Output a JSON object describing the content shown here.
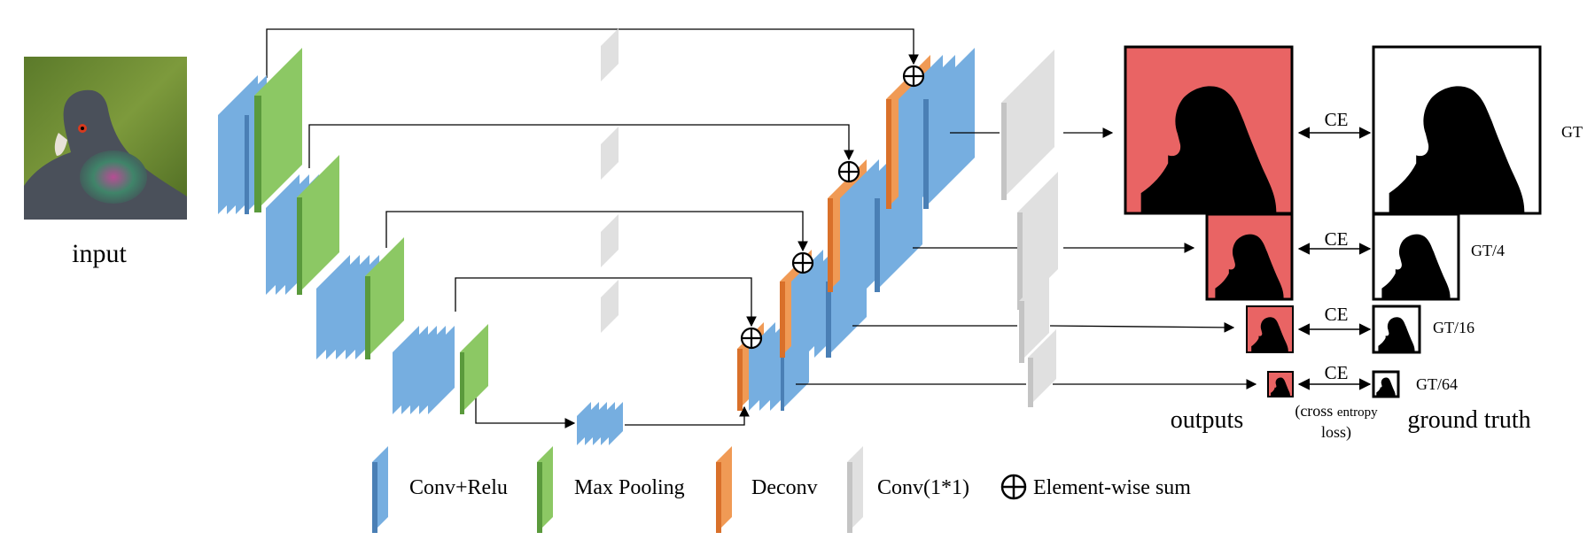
{
  "input_label": "input",
  "outputs_label": "outputs",
  "ground_truth_label": "ground truth",
  "loss_note": [
    "(cross",
    "entropy",
    "loss)"
  ],
  "pair_label": "CE",
  "gt_labels": [
    "GT",
    "GT/4",
    "GT/16",
    "GT/64"
  ],
  "legend": [
    {
      "name": "conv-relu",
      "label": "Conv+Relu",
      "color": "#4a7fb5"
    },
    {
      "name": "max-pooling",
      "label": "Max Pooling",
      "color": "#5a9a3c"
    },
    {
      "name": "deconv",
      "label": "Deconv",
      "color": "#d9702a"
    },
    {
      "name": "conv-1x1",
      "label": "Conv(1*1)",
      "color": "#c4c4c4"
    },
    {
      "name": "element-wise-sum",
      "label": "Element-wise sum",
      "icon": "circle-plus-icon"
    }
  ],
  "colors": {
    "conv_front": "#4a7fb5",
    "conv_side": "#76aee0",
    "pool_front": "#5a9a3c",
    "pool_side": "#8cc864",
    "deconv_front": "#d9702a",
    "deconv_side": "#f09a55",
    "conv1x1_front": "#c4c4c4",
    "conv1x1_side": "#e0e0e0",
    "prediction_bg": "#e96464",
    "silhouette": "#000000"
  }
}
